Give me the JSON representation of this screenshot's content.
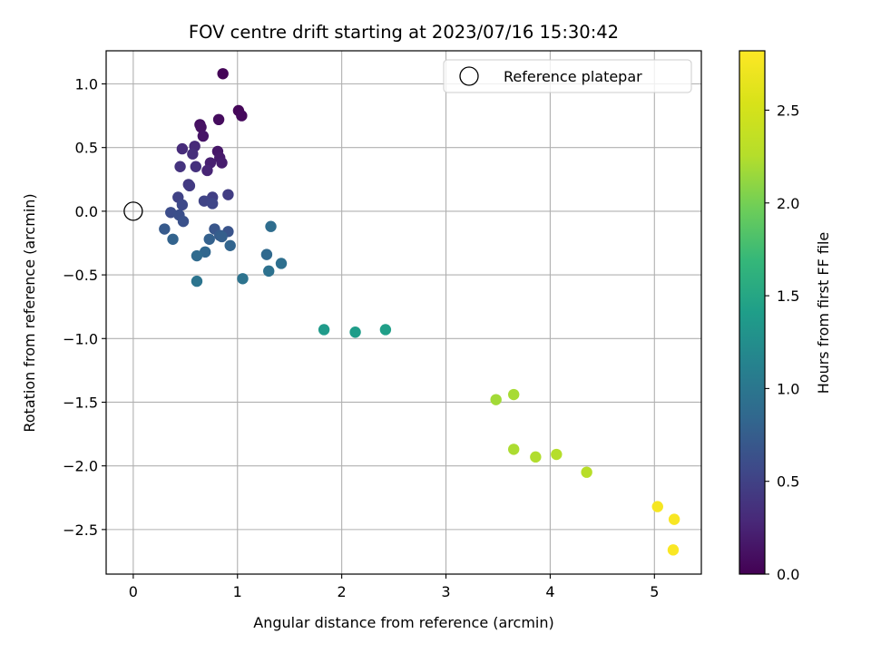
{
  "chart_data": {
    "type": "scatter",
    "title": "FOV centre drift starting at 2023/07/16 15:30:42",
    "xlabel": "Angular distance from reference (arcmin)",
    "ylabel": "Rotation from reference (arcmin)",
    "xlim": [
      -0.26,
      5.45
    ],
    "ylim": [
      -2.85,
      1.26
    ],
    "xticks": [
      0,
      1,
      2,
      3,
      4,
      5
    ],
    "xtick_labels": [
      "0",
      "1",
      "2",
      "3",
      "4",
      "5"
    ],
    "yticks": [
      1.0,
      0.5,
      0.0,
      -0.5,
      -1.0,
      -1.5,
      -2.0,
      -2.5
    ],
    "ytick_labels": [
      "1.0",
      "0.5",
      "0.0",
      "−0.5",
      "−1.0",
      "−1.5",
      "−2.0",
      "−2.5"
    ],
    "grid": true,
    "legend": {
      "placement": "top-right",
      "entries": [
        "Reference platepar"
      ]
    },
    "reference_point": {
      "x": 0,
      "y": 0
    },
    "colorbar": {
      "label": "Hours from first FF file",
      "range": [
        0.0,
        2.82
      ],
      "ticks": [
        0.0,
        0.5,
        1.0,
        1.5,
        2.0,
        2.5
      ],
      "tick_labels": [
        "0.0",
        "0.5",
        "1.0",
        "1.5",
        "2.0",
        "2.5"
      ],
      "colormap": "viridis"
    },
    "series": [
      {
        "points": [
          {
            "x": 0.86,
            "y": 1.08,
            "c": 0.02
          },
          {
            "x": 1.01,
            "y": 0.79,
            "c": 0.04
          },
          {
            "x": 1.04,
            "y": 0.75,
            "c": 0.06
          },
          {
            "x": 0.82,
            "y": 0.72,
            "c": 0.08
          },
          {
            "x": 0.64,
            "y": 0.68,
            "c": 0.1
          },
          {
            "x": 0.65,
            "y": 0.66,
            "c": 0.12
          },
          {
            "x": 0.67,
            "y": 0.59,
            "c": 0.14
          },
          {
            "x": 0.81,
            "y": 0.47,
            "c": 0.16
          },
          {
            "x": 0.83,
            "y": 0.42,
            "c": 0.18
          },
          {
            "x": 0.85,
            "y": 0.38,
            "c": 0.2
          },
          {
            "x": 0.74,
            "y": 0.38,
            "c": 0.22
          },
          {
            "x": 0.71,
            "y": 0.32,
            "c": 0.26
          },
          {
            "x": 0.59,
            "y": 0.51,
            "c": 0.3
          },
          {
            "x": 0.47,
            "y": 0.49,
            "c": 0.32
          },
          {
            "x": 0.57,
            "y": 0.45,
            "c": 0.34
          },
          {
            "x": 0.6,
            "y": 0.35,
            "c": 0.36
          },
          {
            "x": 0.45,
            "y": 0.35,
            "c": 0.38
          },
          {
            "x": 0.53,
            "y": 0.21,
            "c": 0.42
          },
          {
            "x": 0.54,
            "y": 0.2,
            "c": 0.44
          },
          {
            "x": 0.91,
            "y": 0.13,
            "c": 0.46
          },
          {
            "x": 0.76,
            "y": 0.11,
            "c": 0.48
          },
          {
            "x": 0.43,
            "y": 0.11,
            "c": 0.5
          },
          {
            "x": 0.68,
            "y": 0.08,
            "c": 0.52
          },
          {
            "x": 0.76,
            "y": 0.06,
            "c": 0.54
          },
          {
            "x": 0.47,
            "y": 0.05,
            "c": 0.56
          },
          {
            "x": 0.36,
            "y": -0.01,
            "c": 0.6
          },
          {
            "x": 0.44,
            "y": -0.03,
            "c": 0.62
          },
          {
            "x": 0.48,
            "y": -0.08,
            "c": 0.64
          },
          {
            "x": 0.91,
            "y": -0.16,
            "c": 0.66
          },
          {
            "x": 0.78,
            "y": -0.14,
            "c": 0.68
          },
          {
            "x": 0.3,
            "y": -0.14,
            "c": 0.72
          },
          {
            "x": 0.83,
            "y": -0.19,
            "c": 0.74
          },
          {
            "x": 0.85,
            "y": -0.2,
            "c": 0.76
          },
          {
            "x": 0.73,
            "y": -0.22,
            "c": 0.78
          },
          {
            "x": 0.38,
            "y": -0.22,
            "c": 0.8
          },
          {
            "x": 0.93,
            "y": -0.27,
            "c": 0.82
          },
          {
            "x": 0.69,
            "y": -0.32,
            "c": 0.84
          },
          {
            "x": 1.28,
            "y": -0.34,
            "c": 0.86
          },
          {
            "x": 0.61,
            "y": -0.35,
            "c": 0.88
          },
          {
            "x": 1.32,
            "y": -0.12,
            "c": 0.9
          },
          {
            "x": 1.42,
            "y": -0.41,
            "c": 0.92
          },
          {
            "x": 1.3,
            "y": -0.47,
            "c": 0.94
          },
          {
            "x": 1.05,
            "y": -0.53,
            "c": 0.96
          },
          {
            "x": 0.61,
            "y": -0.55,
            "c": 0.98
          },
          {
            "x": 1.83,
            "y": -0.93,
            "c": 1.38
          },
          {
            "x": 2.13,
            "y": -0.95,
            "c": 1.4
          },
          {
            "x": 2.42,
            "y": -0.93,
            "c": 1.42
          },
          {
            "x": 3.48,
            "y": -1.48,
            "c": 2.18
          },
          {
            "x": 3.65,
            "y": -1.44,
            "c": 2.2
          },
          {
            "x": 3.65,
            "y": -1.87,
            "c": 2.22
          },
          {
            "x": 3.86,
            "y": -1.93,
            "c": 2.24
          },
          {
            "x": 4.06,
            "y": -1.91,
            "c": 2.26
          },
          {
            "x": 4.35,
            "y": -2.05,
            "c": 2.28
          },
          {
            "x": 5.03,
            "y": -2.32,
            "c": 2.76
          },
          {
            "x": 5.19,
            "y": -2.42,
            "c": 2.78
          },
          {
            "x": 5.18,
            "y": -2.66,
            "c": 2.8
          }
        ]
      }
    ]
  }
}
